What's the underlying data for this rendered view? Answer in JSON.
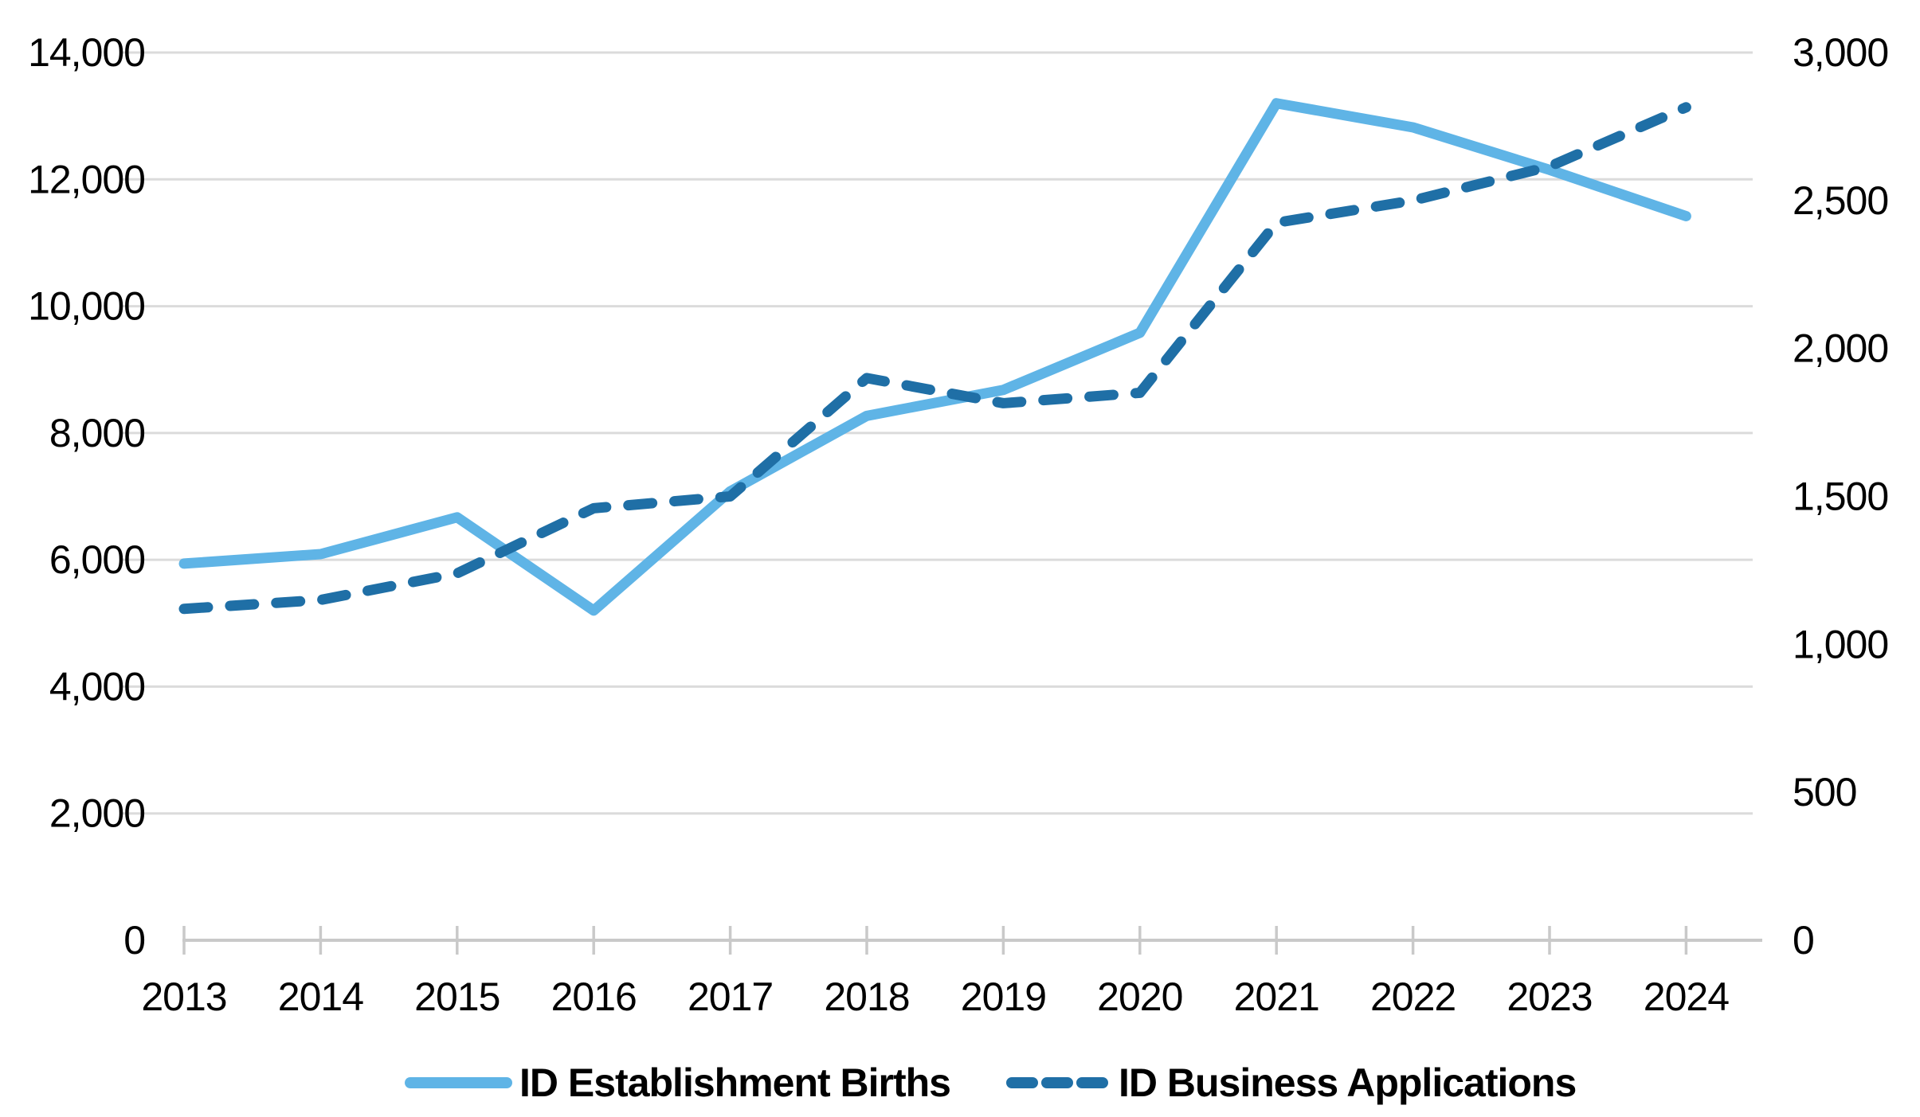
{
  "chart_data": {
    "type": "line",
    "title": "",
    "xlabel": "",
    "ylabel": "",
    "grid": true,
    "legend_position": "bottom",
    "categories": [
      "2013",
      "2014",
      "2015",
      "2016",
      "2017",
      "2018",
      "2019",
      "2020",
      "2021",
      "2022",
      "2023",
      "2024"
    ],
    "series": [
      {
        "name": "ID Establishment Births",
        "axis": "left",
        "line_style": "solid",
        "color": "#5FB4E6",
        "values": [
          5940,
          6090,
          6670,
          5200,
          7080,
          8270,
          8680,
          9580,
          13200,
          12820,
          12150,
          11420
        ]
      },
      {
        "name": "ID Business Applications",
        "axis": "right",
        "line_style": "dashed",
        "color": "#1F6FA6",
        "values": [
          1120,
          1150,
          1240,
          1460,
          1500,
          1900,
          1815,
          1850,
          2425,
          2500,
          2615,
          2815
        ]
      }
    ],
    "left_axis": {
      "min": 0,
      "max": 14000,
      "tick_step": 2000,
      "tick_labels": [
        "0",
        "2,000",
        "4,000",
        "6,000",
        "8,000",
        "10,000",
        "12,000",
        "14,000"
      ]
    },
    "right_axis": {
      "min": 0,
      "max": 3000,
      "tick_step": 500,
      "tick_labels": [
        "0",
        "500",
        "1,000",
        "1,500",
        "2,000",
        "2,500",
        "3,000"
      ]
    }
  },
  "legend": {
    "items": [
      {
        "label": "ID Establishment Births",
        "swatch": "solid-line"
      },
      {
        "label": "ID Business Applications",
        "swatch": "dashed-line"
      }
    ]
  },
  "colors": {
    "births_line": "#5FB4E6",
    "applications_line": "#1F6FA6",
    "gridline": "#DBDBDB",
    "axis_line": "#C9C9C9",
    "text": "#000000",
    "background": "#FFFFFF"
  }
}
